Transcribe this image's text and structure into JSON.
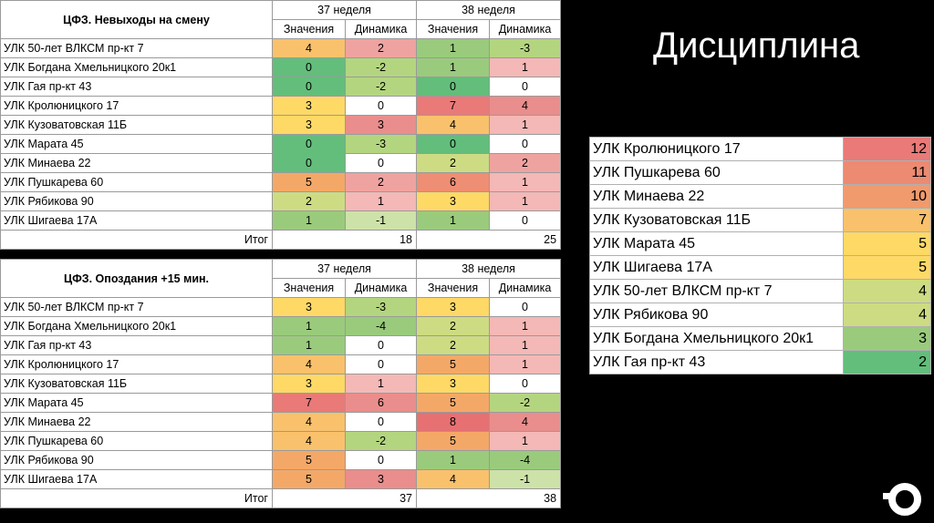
{
  "slide": {
    "title": "Дисциплина"
  },
  "colors": {
    "green_dark": "#63BE7B",
    "green_mid": "#8CC97A",
    "green_light": "#B4D57F",
    "olive": "#CDDC82",
    "yellow_green": "#E2E283",
    "yellow": "#FFD966",
    "orange_light": "#F9C16C",
    "orange": "#F4A868",
    "salmon": "#F0A0A0",
    "red_light": "#EE9A96",
    "red": "#E97A78",
    "pink_light": "#F6C2C0"
  },
  "table1": {
    "title": "ЦФЗ. Невыходы на смену",
    "weeks": [
      "37 неделя",
      "38 неделя"
    ],
    "subheaders": [
      "Значения",
      "Динамика",
      "Значения",
      "Динамика"
    ],
    "rows": [
      {
        "name": "УЛК 50-лет ВЛКСМ пр-кт 7",
        "v37": "4",
        "d37": "2",
        "v38": "1",
        "d38": "-3"
      },
      {
        "name": "УЛК Богдана Хмельницкого 20к1",
        "v37": "0",
        "d37": "-2",
        "v38": "1",
        "d38": "1"
      },
      {
        "name": "УЛК Гая пр-кт 43",
        "v37": "0",
        "d37": "-2",
        "v38": "0",
        "d38": "0"
      },
      {
        "name": "УЛК Кролюницкого 17",
        "v37": "3",
        "d37": "0",
        "v38": "7",
        "d38": "4"
      },
      {
        "name": "УЛК Кузоватовская 11Б",
        "v37": "3",
        "d37": "3",
        "v38": "4",
        "d38": "1"
      },
      {
        "name": "УЛК Марата 45",
        "v37": "0",
        "d37": "-3",
        "v38": "0",
        "d38": "0"
      },
      {
        "name": "УЛК Минаева 22",
        "v37": "0",
        "d37": "0",
        "v38": "2",
        "d38": "2"
      },
      {
        "name": "УЛК Пушкарева 60",
        "v37": "5",
        "d37": "2",
        "v38": "6",
        "d38": "1"
      },
      {
        "name": "УЛК Рябикова 90",
        "v37": "2",
        "d37": "1",
        "v38": "3",
        "d38": "1"
      },
      {
        "name": "УЛК Шигаева 17А",
        "v37": "1",
        "d37": "-1",
        "v38": "1",
        "d38": "0"
      }
    ],
    "total_label": "Итог",
    "total37": "18",
    "total38": "25"
  },
  "table2": {
    "title": "ЦФЗ. Опоздания +15 мин.",
    "weeks": [
      "37 неделя",
      "38 неделя"
    ],
    "subheaders": [
      "Значения",
      "Динамика",
      "Значения",
      "Динамика"
    ],
    "rows": [
      {
        "name": "УЛК 50-лет ВЛКСМ пр-кт 7",
        "v37": "3",
        "d37": "-3",
        "v38": "3",
        "d38": "0"
      },
      {
        "name": "УЛК Богдана Хмельницкого 20к1",
        "v37": "1",
        "d37": "-4",
        "v38": "2",
        "d38": "1"
      },
      {
        "name": "УЛК Гая пр-кт 43",
        "v37": "1",
        "d37": "0",
        "v38": "2",
        "d38": "1"
      },
      {
        "name": "УЛК Кролюницкого 17",
        "v37": "4",
        "d37": "0",
        "v38": "5",
        "d38": "1"
      },
      {
        "name": "УЛК Кузоватовская 11Б",
        "v37": "3",
        "d37": "1",
        "v38": "3",
        "d38": "0"
      },
      {
        "name": "УЛК Марата 45",
        "v37": "7",
        "d37": "6",
        "v38": "5",
        "d38": "-2"
      },
      {
        "name": "УЛК Минаева 22",
        "v37": "4",
        "d37": "0",
        "v38": "8",
        "d38": "4"
      },
      {
        "name": "УЛК Пушкарева 60",
        "v37": "4",
        "d37": "-2",
        "v38": "5",
        "d38": "1"
      },
      {
        "name": "УЛК Рябикова 90",
        "v37": "5",
        "d37": "0",
        "v38": "1",
        "d38": "-4"
      },
      {
        "name": "УЛК Шигаева 17А",
        "v37": "5",
        "d37": "3",
        "v38": "4",
        "d38": "-1"
      }
    ],
    "total_label": "Итог",
    "total37": "37",
    "total38": "38"
  },
  "ranking": [
    {
      "name": "УЛК Кролюницкого 17",
      "value": "12"
    },
    {
      "name": "УЛК Пушкарева 60",
      "value": "11"
    },
    {
      "name": "УЛК Минаева 22",
      "value": "10"
    },
    {
      "name": "УЛК Кузоватовская 11Б",
      "value": "7"
    },
    {
      "name": "УЛК Марата 45",
      "value": "5"
    },
    {
      "name": "УЛК Шигаева 17А",
      "value": "5"
    },
    {
      "name": "УЛК 50-лет ВЛКСМ пр-кт 7",
      "value": "4"
    },
    {
      "name": "УЛК Рябикова 90",
      "value": "4"
    },
    {
      "name": "УЛК Богдана Хмельницкого 20к1",
      "value": "3"
    },
    {
      "name": "УЛК Гая пр-кт 43",
      "value": "2"
    }
  ]
}
